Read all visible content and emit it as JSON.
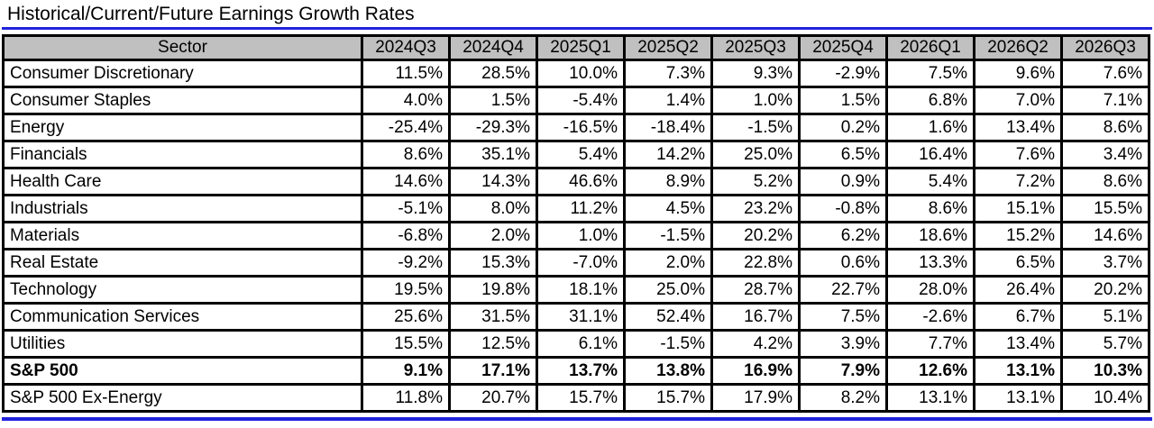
{
  "title": "Historical/Current/Future Earnings Growth Rates",
  "colors": {
    "accent_blue": "#2222DD",
    "header_bg": "#C0C0C0",
    "border": "#000000",
    "text": "#000000"
  },
  "chart_data": {
    "type": "table",
    "title": "Historical/Current/Future Earnings Growth Rates",
    "columns": [
      "Sector",
      "2024Q3",
      "2024Q4",
      "2025Q1",
      "2025Q2",
      "2025Q3",
      "2025Q4",
      "2026Q1",
      "2026Q2",
      "2026Q3"
    ],
    "rows": [
      {
        "sector": "Consumer Discretionary",
        "bold": false,
        "values": [
          "11.5%",
          "28.5%",
          "10.0%",
          "7.3%",
          "9.3%",
          "-2.9%",
          "7.5%",
          "9.6%",
          "7.6%"
        ]
      },
      {
        "sector": "Consumer Staples",
        "bold": false,
        "values": [
          "4.0%",
          "1.5%",
          "-5.4%",
          "1.4%",
          "1.0%",
          "1.5%",
          "6.8%",
          "7.0%",
          "7.1%"
        ]
      },
      {
        "sector": "Energy",
        "bold": false,
        "values": [
          "-25.4%",
          "-29.3%",
          "-16.5%",
          "-18.4%",
          "-1.5%",
          "0.2%",
          "1.6%",
          "13.4%",
          "8.6%"
        ]
      },
      {
        "sector": "Financials",
        "bold": false,
        "values": [
          "8.6%",
          "35.1%",
          "5.4%",
          "14.2%",
          "25.0%",
          "6.5%",
          "16.4%",
          "7.6%",
          "3.4%"
        ]
      },
      {
        "sector": "Health Care",
        "bold": false,
        "values": [
          "14.6%",
          "14.3%",
          "46.6%",
          "8.9%",
          "5.2%",
          "0.9%",
          "5.4%",
          "7.2%",
          "8.6%"
        ]
      },
      {
        "sector": "Industrials",
        "bold": false,
        "values": [
          "-5.1%",
          "8.0%",
          "11.2%",
          "4.5%",
          "23.2%",
          "-0.8%",
          "8.6%",
          "15.1%",
          "15.5%"
        ]
      },
      {
        "sector": "Materials",
        "bold": false,
        "values": [
          "-6.8%",
          "2.0%",
          "1.0%",
          "-1.5%",
          "20.2%",
          "6.2%",
          "18.6%",
          "15.2%",
          "14.6%"
        ]
      },
      {
        "sector": "Real Estate",
        "bold": false,
        "values": [
          "-9.2%",
          "15.3%",
          "-7.0%",
          "2.0%",
          "22.8%",
          "0.6%",
          "13.3%",
          "6.5%",
          "3.7%"
        ]
      },
      {
        "sector": "Technology",
        "bold": false,
        "values": [
          "19.5%",
          "19.8%",
          "18.1%",
          "25.0%",
          "28.7%",
          "22.7%",
          "28.0%",
          "26.4%",
          "20.2%"
        ]
      },
      {
        "sector": "Communication Services",
        "bold": false,
        "values": [
          "25.6%",
          "31.5%",
          "31.1%",
          "52.4%",
          "16.7%",
          "7.5%",
          "-2.6%",
          "6.7%",
          "5.1%"
        ]
      },
      {
        "sector": "Utilities",
        "bold": false,
        "values": [
          "15.5%",
          "12.5%",
          "6.1%",
          "-1.5%",
          "4.2%",
          "3.9%",
          "7.7%",
          "13.4%",
          "5.7%"
        ]
      },
      {
        "sector": "S&P 500",
        "bold": true,
        "values": [
          "9.1%",
          "17.1%",
          "13.7%",
          "13.8%",
          "16.9%",
          "7.9%",
          "12.6%",
          "13.1%",
          "10.3%"
        ]
      },
      {
        "sector": "S&P 500 Ex-Energy",
        "bold": false,
        "values": [
          "11.8%",
          "20.7%",
          "15.7%",
          "15.7%",
          "17.9%",
          "8.2%",
          "13.1%",
          "13.1%",
          "10.4%"
        ]
      }
    ]
  }
}
